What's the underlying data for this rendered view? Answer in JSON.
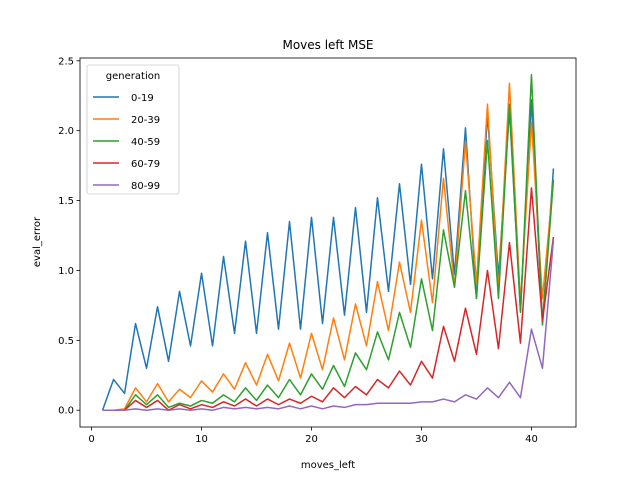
{
  "chart_data": {
    "type": "line",
    "title": "Moves left MSE",
    "xlabel": "moves_left",
    "ylabel": "eval_error",
    "xlim": [
      -1.05,
      44.05
    ],
    "ylim": [
      -0.12,
      2.52
    ],
    "xticks": [
      0,
      10,
      20,
      30,
      40
    ],
    "yticks": [
      0.0,
      0.5,
      1.0,
      1.5,
      2.0,
      2.5
    ],
    "xtick_labels": [
      "0",
      "10",
      "20",
      "30",
      "40"
    ],
    "ytick_labels": [
      "0.0",
      "0.5",
      "1.0",
      "1.5",
      "2.0",
      "2.5"
    ],
    "grid": false,
    "legend": {
      "title": "generation",
      "placement": "top-left"
    },
    "x": [
      1,
      2,
      3,
      4,
      5,
      6,
      7,
      8,
      9,
      10,
      11,
      12,
      13,
      14,
      15,
      16,
      17,
      18,
      19,
      20,
      21,
      22,
      23,
      24,
      25,
      26,
      27,
      28,
      29,
      30,
      31,
      32,
      33,
      34,
      35,
      36,
      37,
      38,
      39,
      40,
      41,
      42
    ],
    "series": [
      {
        "name": "0-19",
        "color": "#1f77b4",
        "values": [
          0.0,
          0.22,
          0.12,
          0.62,
          0.3,
          0.74,
          0.35,
          0.85,
          0.46,
          0.98,
          0.46,
          1.1,
          0.55,
          1.21,
          0.55,
          1.27,
          0.58,
          1.35,
          0.58,
          1.38,
          0.62,
          1.38,
          0.68,
          1.45,
          0.7,
          1.52,
          0.85,
          1.62,
          0.9,
          1.76,
          0.94,
          1.87,
          0.97,
          2.02,
          0.8,
          2.12,
          0.95,
          2.15,
          0.71,
          2.22,
          0.62,
          1.73
        ]
      },
      {
        "name": "20-39",
        "color": "#ff7f0e",
        "values": [
          0.0,
          0.0,
          0.01,
          0.16,
          0.06,
          0.19,
          0.06,
          0.15,
          0.09,
          0.21,
          0.13,
          0.26,
          0.15,
          0.34,
          0.18,
          0.4,
          0.21,
          0.48,
          0.23,
          0.55,
          0.29,
          0.66,
          0.36,
          0.76,
          0.46,
          0.92,
          0.57,
          1.06,
          0.7,
          1.36,
          0.77,
          1.66,
          0.88,
          1.92,
          0.91,
          2.19,
          0.85,
          2.34,
          0.77,
          2.06,
          0.8,
          1.65
        ]
      },
      {
        "name": "40-59",
        "color": "#2ca02c",
        "values": [
          0.0,
          0.0,
          0.0,
          0.11,
          0.04,
          0.11,
          0.02,
          0.05,
          0.03,
          0.07,
          0.05,
          0.11,
          0.06,
          0.16,
          0.07,
          0.18,
          0.09,
          0.22,
          0.11,
          0.26,
          0.15,
          0.32,
          0.17,
          0.41,
          0.29,
          0.56,
          0.36,
          0.7,
          0.45,
          0.94,
          0.57,
          1.29,
          0.88,
          1.57,
          0.8,
          1.93,
          0.8,
          2.19,
          0.7,
          2.4,
          0.61,
          1.65
        ]
      },
      {
        "name": "60-79",
        "color": "#d62728",
        "values": [
          0.0,
          0.0,
          0.0,
          0.07,
          0.02,
          0.07,
          0.0,
          0.04,
          0.01,
          0.04,
          0.02,
          0.06,
          0.03,
          0.08,
          0.03,
          0.08,
          0.04,
          0.08,
          0.05,
          0.1,
          0.06,
          0.16,
          0.09,
          0.17,
          0.11,
          0.22,
          0.16,
          0.28,
          0.18,
          0.35,
          0.23,
          0.6,
          0.35,
          0.73,
          0.4,
          1.0,
          0.44,
          1.2,
          0.48,
          1.59,
          0.64,
          1.24
        ]
      },
      {
        "name": "80-99",
        "color": "#9467bd",
        "values": [
          0.0,
          0.0,
          0.0,
          0.01,
          0.0,
          0.01,
          0.0,
          0.01,
          0.0,
          0.01,
          0.0,
          0.02,
          0.01,
          0.02,
          0.01,
          0.02,
          0.01,
          0.03,
          0.01,
          0.03,
          0.01,
          0.03,
          0.02,
          0.04,
          0.04,
          0.05,
          0.05,
          0.05,
          0.05,
          0.06,
          0.06,
          0.08,
          0.06,
          0.11,
          0.08,
          0.16,
          0.09,
          0.2,
          0.09,
          0.58,
          0.3,
          1.22
        ]
      }
    ]
  }
}
